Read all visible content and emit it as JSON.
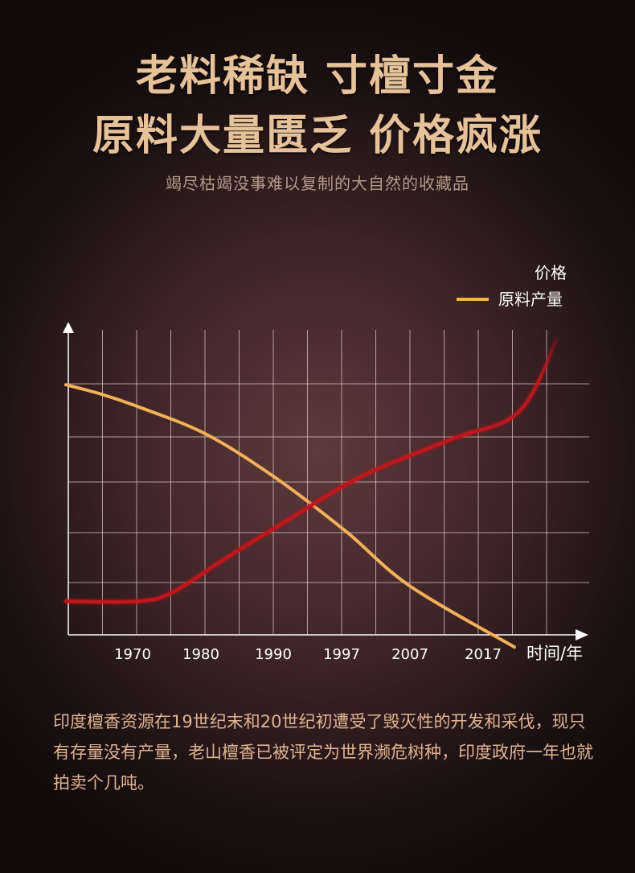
{
  "header": {
    "title_line1": "老料稀缺 寸檀寸金",
    "title_line2": "原料大量匮乏 价格疯涨",
    "subtitle": "竭尽枯竭没事难以复制的大自然的收藏品"
  },
  "chart_data": {
    "type": "line",
    "xlabel": "时间/年",
    "ylabel": "",
    "x_ticks": [
      "1970",
      "1980",
      "1990",
      "1997",
      "2007",
      "2017"
    ],
    "legend_position": "top-right",
    "grid": true,
    "y_ticks_shown": false,
    "series": [
      {
        "name": "价格",
        "color": "#c0141e",
        "values_relative": [
          0.11,
          0.11,
          0.14,
          0.25,
          0.38,
          0.52,
          0.64,
          0.73,
          0.97
        ]
      },
      {
        "name": "原料产量",
        "color": "#f2b05a",
        "values_relative": [
          0.82,
          0.79,
          0.75,
          0.66,
          0.52,
          0.34,
          0.16,
          -0.04
        ]
      }
    ]
  },
  "body": {
    "paragraph": "印度檀香资源在19世纪末和20世纪初遭受了毁灭性的开发和采伐，现只有存量没有产量，老山檀香已被评定为世界濒危树种，印度政府一年也就拍卖个几吨。"
  }
}
